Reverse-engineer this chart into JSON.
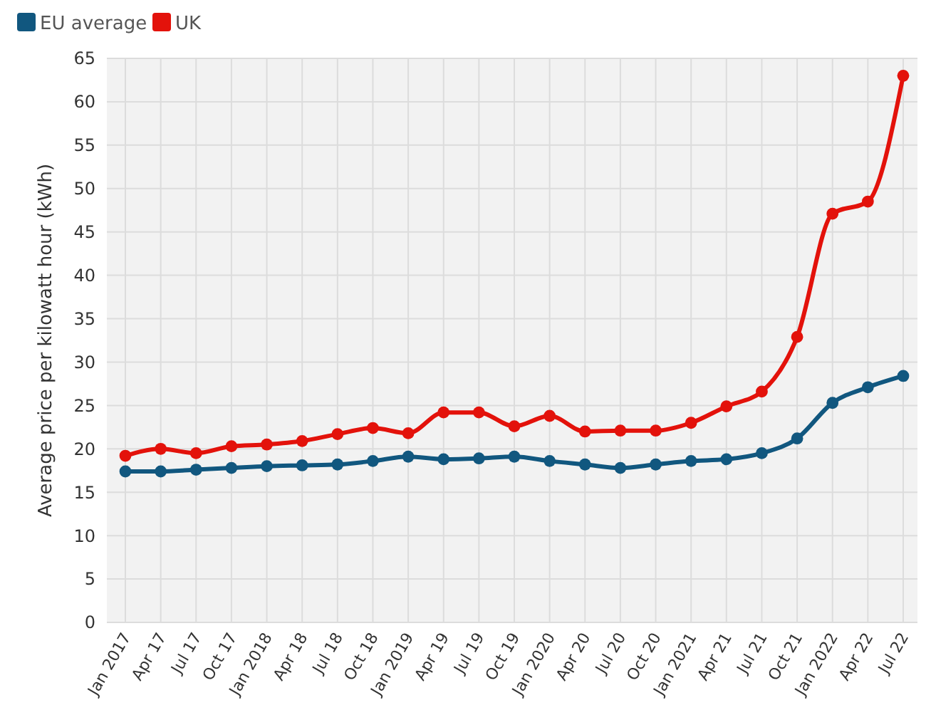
{
  "chart_data": {
    "type": "line",
    "ylabel": "Average price per kilowatt hour (kWh)",
    "categories": [
      "Jan 2017",
      "Apr 17",
      "Jul 17",
      "Oct 17",
      "Jan 2018",
      "Apr 18",
      "Jul 18",
      "Oct 18",
      "Jan 2019",
      "Apr 19",
      "Jul 19",
      "Oct 19",
      "Jan 2020",
      "Apr 20",
      "Jul 20",
      "Oct 20",
      "Jan 2021",
      "Apr 21",
      "Jul 21",
      "Oct 21",
      "Jan 2022",
      "Apr 22",
      "Jul 22"
    ],
    "series": [
      {
        "name": "EU average",
        "color": "#11577f",
        "values": [
          17.4,
          17.4,
          17.6,
          17.8,
          18.0,
          18.1,
          18.2,
          18.6,
          19.1,
          18.8,
          18.9,
          19.1,
          18.6,
          18.2,
          17.8,
          18.2,
          18.6,
          18.8,
          19.5,
          21.2,
          25.3,
          27.1,
          28.4
        ]
      },
      {
        "name": "UK",
        "color": "#e3120b",
        "values": [
          19.2,
          20.0,
          19.5,
          20.3,
          20.5,
          20.9,
          21.7,
          22.4,
          21.8,
          24.2,
          24.2,
          22.6,
          23.8,
          22.0,
          22.1,
          22.1,
          23.0,
          24.9,
          26.6,
          32.9,
          47.1,
          48.5,
          63.0
        ]
      }
    ],
    "ylim": [
      0,
      65
    ],
    "yticks": [
      0,
      5,
      10,
      15,
      20,
      25,
      30,
      35,
      40,
      45,
      50,
      55,
      60,
      65
    ],
    "grid": true,
    "legend": "top left",
    "marker": "circle",
    "line_style": "solid"
  }
}
